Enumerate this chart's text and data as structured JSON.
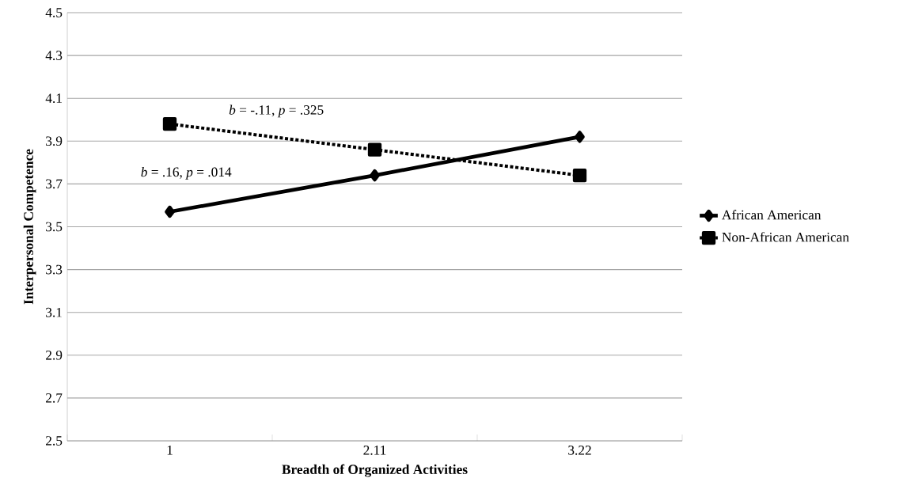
{
  "chart_data": {
    "type": "line",
    "xlabel": "Breadth of Organized Activities",
    "ylabel": "Interpersonal Competence",
    "categories": [
      "1",
      "2.11",
      "3.22"
    ],
    "series": [
      {
        "name": "African American",
        "color": "#000000",
        "values": [
          3.57,
          3.74,
          3.92
        ],
        "marker": "diamond",
        "line_style": "solid"
      },
      {
        "name": "Non-African American",
        "color": "#000000",
        "values": [
          3.98,
          3.86,
          3.74
        ],
        "marker": "square",
        "line_style": "dotted"
      }
    ],
    "ylim": [
      2.5,
      4.5
    ],
    "yticks": [
      2.5,
      2.7,
      2.9,
      3.1,
      3.3,
      3.5,
      3.7,
      3.9,
      4.1,
      4.3,
      4.5
    ],
    "grid": "y",
    "legend": "right",
    "annotations": [
      "*b* = -.11,  *p* = .325",
      "*b* = .16,  *p* = .014"
    ]
  }
}
